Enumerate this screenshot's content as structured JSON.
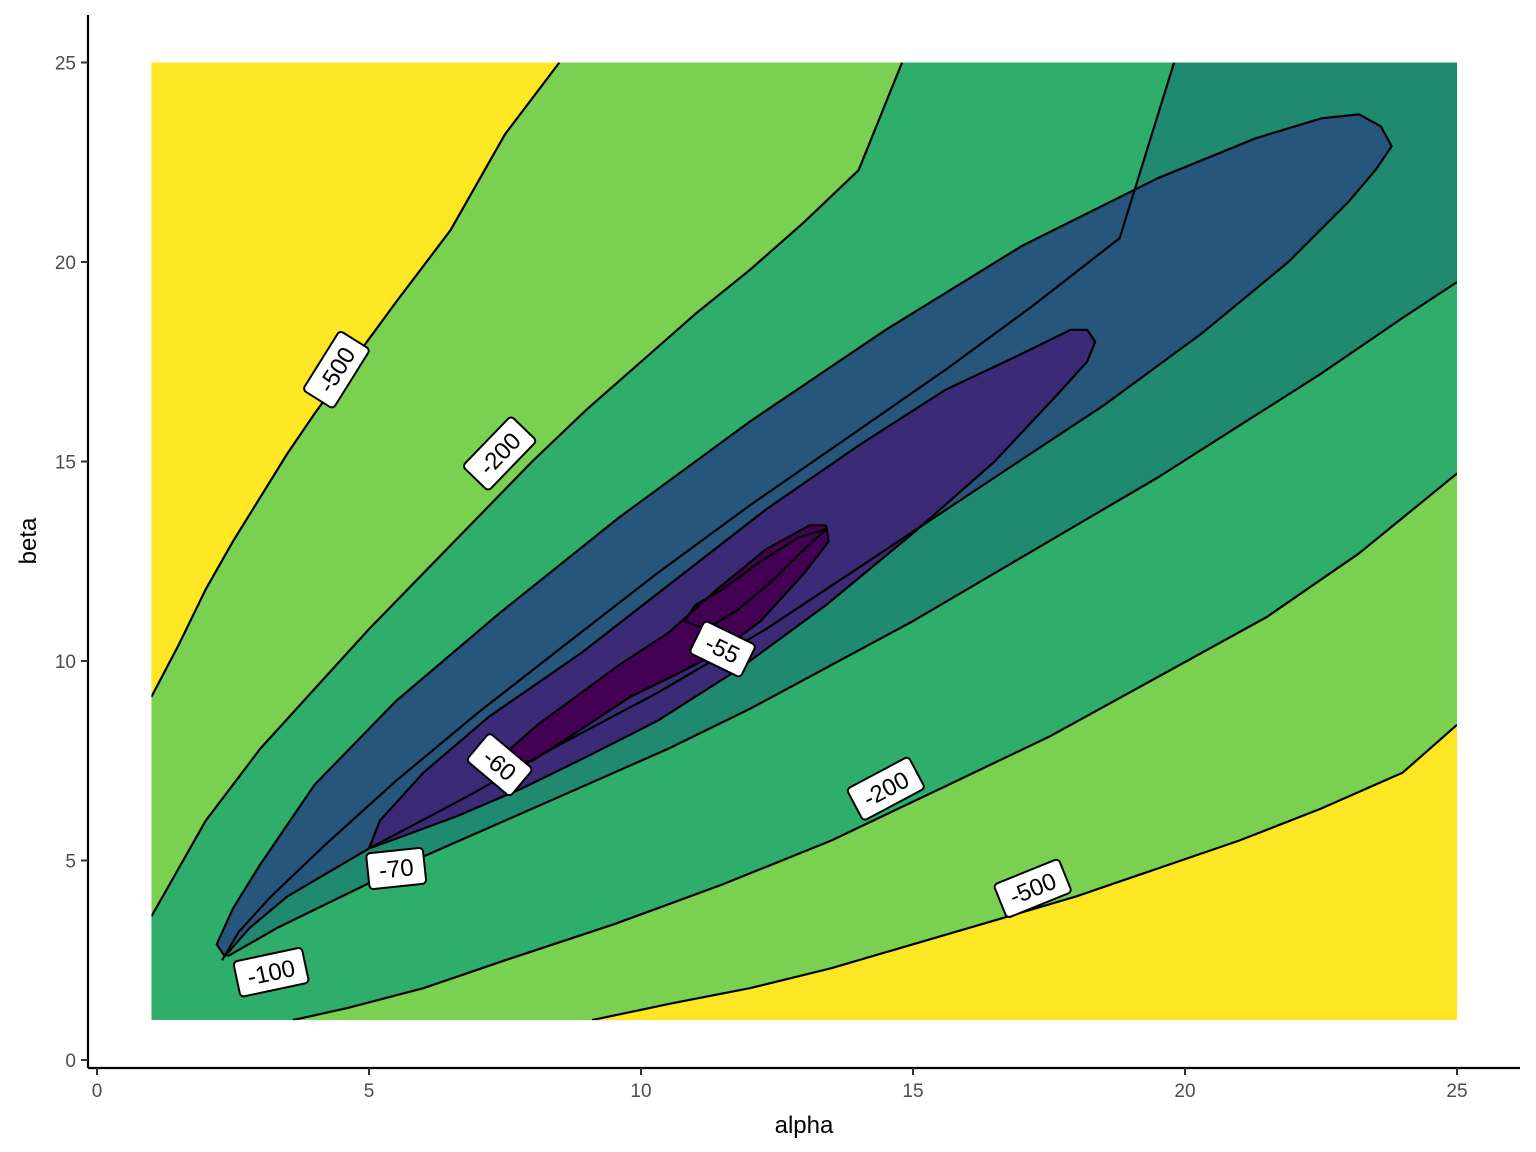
{
  "chart_data": {
    "type": "contour",
    "title": "",
    "xlabel": "alpha",
    "ylabel": "beta",
    "xlim": [
      -0.3,
      26
    ],
    "ylim": [
      -0.3,
      26.2
    ],
    "data_range": {
      "x": [
        1,
        25
      ],
      "y": [
        1,
        25
      ]
    },
    "x_ticks": [
      0,
      5,
      10,
      15,
      20,
      25
    ],
    "y_ticks": [
      0,
      5,
      10,
      15,
      20,
      25
    ],
    "grid": false,
    "legend": "none",
    "levels": [
      {
        "value": -500,
        "label": "-500",
        "color": "#FDE725"
      },
      {
        "value": -200,
        "label": "-200",
        "color": "#7AD151"
      },
      {
        "value": -100,
        "label": "-100",
        "color": "#2EAD6B"
      },
      {
        "value": -70,
        "label": "-70",
        "color": "#1F8A70"
      },
      {
        "value": -60,
        "label": "-60",
        "color": "#27567D"
      },
      {
        "value": -55,
        "label": "-55",
        "color": "#3B2A75"
      },
      {
        "value": -50,
        "label": "",
        "color": "#440154"
      }
    ],
    "contours": [
      {
        "level": -500,
        "points": [
          [
            1,
            9.1
          ],
          [
            1.5,
            10.4
          ],
          [
            2,
            11.8
          ],
          [
            2.5,
            13
          ],
          [
            3,
            14.1
          ],
          [
            3.5,
            15.2
          ],
          [
            4,
            16.2
          ],
          [
            4.8,
            17.7
          ],
          [
            5.5,
            19
          ],
          [
            6.5,
            20.8
          ],
          [
            7.5,
            23.2
          ],
          [
            8.5,
            25
          ]
        ]
      },
      {
        "level": -200,
        "points": [
          [
            1,
            3.6
          ],
          [
            1.5,
            4.8
          ],
          [
            2,
            6
          ],
          [
            2.5,
            6.9
          ],
          [
            3,
            7.8
          ],
          [
            4,
            9.3
          ],
          [
            5,
            10.8
          ],
          [
            6,
            12.2
          ],
          [
            7,
            13.6
          ],
          [
            8,
            15
          ],
          [
            9,
            16.3
          ],
          [
            10,
            17.5
          ],
          [
            11,
            18.7
          ],
          [
            12,
            19.8
          ],
          [
            13,
            21
          ],
          [
            14,
            22.3
          ],
          [
            14.8,
            25
          ]
        ]
      },
      {
        "level": -100,
        "points": [
          [
            2.3,
            2.5
          ],
          [
            2.6,
            3.2
          ],
          [
            3.2,
            4.1
          ],
          [
            4.2,
            5.4
          ],
          [
            5.5,
            7.0
          ],
          [
            7,
            8.7
          ],
          [
            8.6,
            10.4
          ],
          [
            10.3,
            12.2
          ],
          [
            12,
            13.9
          ],
          [
            13.8,
            15.6
          ],
          [
            15.6,
            17.3
          ],
          [
            17.2,
            18.9
          ],
          [
            18.8,
            20.6
          ],
          [
            19.8,
            25
          ]
        ]
      },
      {
        "level": -70,
        "points": [
          [
            2.35,
            2.6
          ],
          [
            2.8,
            3.3
          ],
          [
            3.5,
            4.1
          ],
          [
            5,
            5.3
          ],
          [
            6.8,
            6.6
          ],
          [
            8.5,
            7.9
          ],
          [
            10.3,
            9.2
          ],
          [
            12.3,
            10.8
          ],
          [
            14.4,
            12.7
          ],
          [
            16.5,
            14.6
          ],
          [
            18.5,
            16.4
          ],
          [
            20.3,
            18.2
          ],
          [
            21.9,
            20
          ],
          [
            23,
            21.5
          ],
          [
            23.5,
            22.3
          ],
          [
            23.8,
            22.9
          ],
          [
            23.6,
            23.4
          ],
          [
            23.2,
            23.7
          ],
          [
            22.5,
            23.6
          ],
          [
            21.3,
            23.1
          ],
          [
            19.5,
            22.1
          ],
          [
            17,
            20.4
          ],
          [
            14.5,
            18.3
          ],
          [
            12,
            16
          ],
          [
            9.6,
            13.6
          ],
          [
            7.4,
            11.2
          ],
          [
            5.5,
            9
          ],
          [
            4,
            6.9
          ],
          [
            3,
            4.9
          ],
          [
            2.5,
            3.8
          ],
          [
            2.2,
            2.9
          ],
          [
            2.35,
            2.6
          ]
        ]
      },
      {
        "level": -60,
        "points": [
          [
            5,
            5.3
          ],
          [
            5.6,
            5.6
          ],
          [
            6.6,
            6.1
          ],
          [
            7.8,
            6.8
          ],
          [
            9,
            7.6
          ],
          [
            10.3,
            8.5
          ],
          [
            11.8,
            9.8
          ],
          [
            13.4,
            11.4
          ],
          [
            15,
            13.2
          ],
          [
            16.5,
            15
          ],
          [
            17.6,
            16.6
          ],
          [
            18.2,
            17.5
          ],
          [
            18.35,
            18.0
          ],
          [
            18.2,
            18.3
          ],
          [
            17.9,
            18.3
          ],
          [
            17,
            17.7
          ],
          [
            15.6,
            16.8
          ],
          [
            14,
            15.4
          ],
          [
            12.3,
            13.8
          ],
          [
            10.6,
            12
          ],
          [
            8.9,
            10.2
          ],
          [
            7.2,
            8.6
          ],
          [
            6,
            7.2
          ],
          [
            5.2,
            6
          ],
          [
            5,
            5.3
          ]
        ]
      },
      {
        "level": -55,
        "points": [
          [
            7.5,
            7.4
          ],
          [
            8,
            7.5
          ],
          [
            8.8,
            8.2
          ],
          [
            9.8,
            9.1
          ],
          [
            10.7,
            9.7
          ],
          [
            11.4,
            10.2
          ],
          [
            12.2,
            11
          ],
          [
            13,
            12.2
          ],
          [
            13.45,
            13
          ],
          [
            13.4,
            13.4
          ],
          [
            13.1,
            13.4
          ],
          [
            12.3,
            12.8
          ],
          [
            11.4,
            11.8
          ],
          [
            10.5,
            10.7
          ],
          [
            9.6,
            9.9
          ],
          [
            8.8,
            9.1
          ],
          [
            8.1,
            8.4
          ],
          [
            7.6,
            7.8
          ],
          [
            7.5,
            7.4
          ]
        ]
      },
      {
        "level": -50,
        "points": [
          [
            10.8,
            11.0
          ],
          [
            11.2,
            10.8
          ],
          [
            11.8,
            11.3
          ],
          [
            12.4,
            12.0
          ],
          [
            13,
            12.8
          ],
          [
            13.4,
            13.3
          ],
          [
            12.9,
            13.1
          ],
          [
            12.2,
            12.5
          ],
          [
            11.5,
            11.8
          ],
          [
            11,
            11.4
          ],
          [
            10.8,
            11.0
          ]
        ]
      },
      {
        "level": -200,
        "points": [
          [
            3.6,
            1
          ],
          [
            4.6,
            1.3
          ],
          [
            6,
            1.8
          ],
          [
            7.5,
            2.5
          ],
          [
            9.5,
            3.4
          ],
          [
            11.5,
            4.4
          ],
          [
            13.5,
            5.5
          ],
          [
            15.5,
            6.8
          ],
          [
            17.5,
            8.1
          ],
          [
            19.5,
            9.6
          ],
          [
            21.5,
            11.1
          ],
          [
            23.2,
            12.7
          ],
          [
            25,
            14.7
          ]
        ]
      },
      {
        "level": -500,
        "points": [
          [
            9.1,
            1
          ],
          [
            10.5,
            1.4
          ],
          [
            12,
            1.8
          ],
          [
            13.5,
            2.3
          ],
          [
            15,
            2.9
          ],
          [
            16.5,
            3.5
          ],
          [
            18,
            4.1
          ],
          [
            19.5,
            4.8
          ],
          [
            21,
            5.5
          ],
          [
            22.5,
            6.3
          ],
          [
            24,
            7.2
          ],
          [
            25,
            8.4
          ]
        ]
      }
    ],
    "labels": [
      {
        "text": "-500",
        "x": 4.4,
        "y": 17.3,
        "angle": -58
      },
      {
        "text": "-200",
        "x": 7.4,
        "y": 15.2,
        "angle": -46
      },
      {
        "text": "-55",
        "x": 11.5,
        "y": 10.3,
        "angle": 26
      },
      {
        "text": "-60",
        "x": 7.4,
        "y": 7.4,
        "angle": 40
      },
      {
        "text": "-200",
        "x": 14.5,
        "y": 6.8,
        "angle": -28
      },
      {
        "text": "-70",
        "x": 5.5,
        "y": 4.8,
        "angle": -6
      },
      {
        "text": "-500",
        "x": 17.2,
        "y": 4.3,
        "angle": -22
      },
      {
        "text": "-100",
        "x": 3.2,
        "y": 2.2,
        "angle": -12
      }
    ]
  }
}
